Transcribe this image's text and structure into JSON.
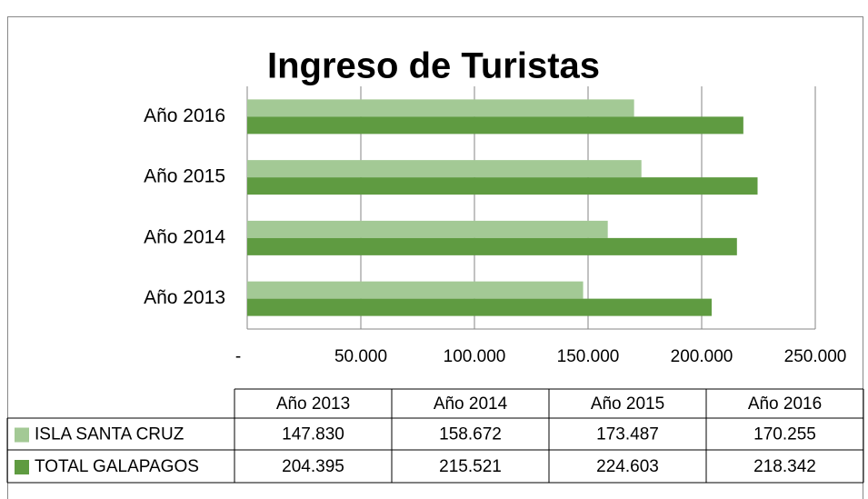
{
  "chart_data": {
    "type": "barh",
    "title": "Ingreso de Turistas",
    "categories": [
      "Año 2013",
      "Año 2014",
      "Año 2015",
      "Año 2016"
    ],
    "series": [
      {
        "name": "ISLA SANTA CRUZ",
        "color": "#a3c995",
        "values": [
          147830,
          158672,
          173487,
          170255
        ],
        "value_labels": [
          "147.830",
          "158.672",
          "173.487",
          "170.255"
        ]
      },
      {
        "name": "TOTAL GALAPAGOS",
        "color": "#5f9b41",
        "values": [
          204395,
          215521,
          224603,
          218342
        ],
        "value_labels": [
          "204.395",
          "215.521",
          "224.603",
          "218.342"
        ]
      }
    ],
    "xlim": [
      0,
      250000
    ],
    "xticks": [
      {
        "value": 0,
        "label": "-"
      },
      {
        "value": 50000,
        "label": "50.000"
      },
      {
        "value": 100000,
        "label": "100.000"
      },
      {
        "value": 150000,
        "label": "150.000"
      },
      {
        "value": 200000,
        "label": "200.000"
      },
      {
        "value": 250000,
        "label": "250.000"
      }
    ],
    "grid": true
  }
}
